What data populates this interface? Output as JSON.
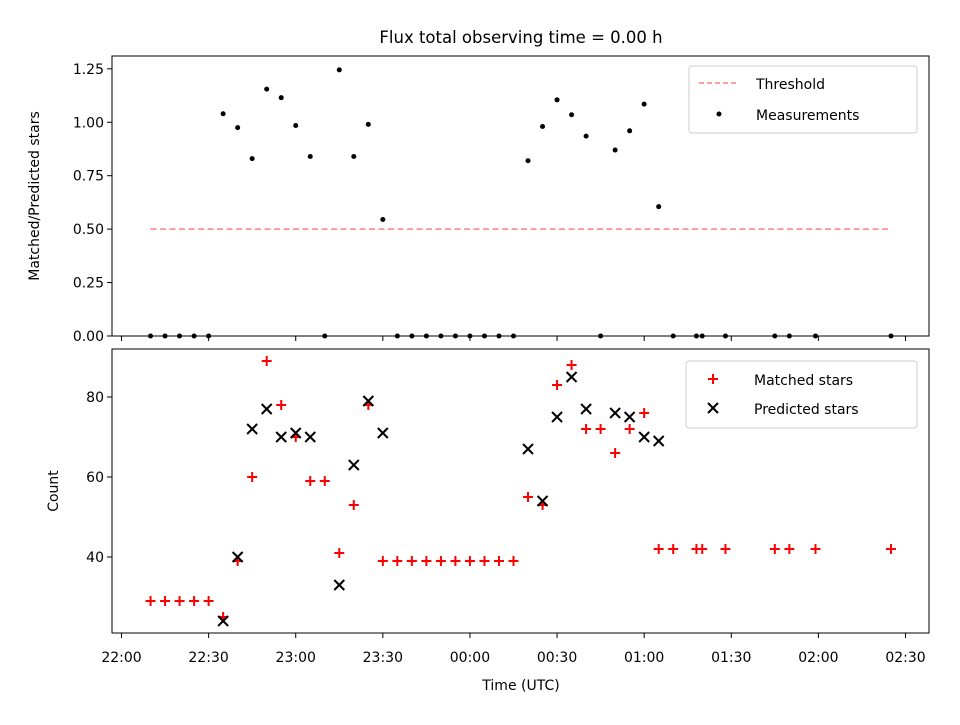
{
  "title": "Flux total observing time = 0.00 h",
  "chart_data": [
    {
      "type": "scatter",
      "ylabel": "Matched/Predicted stars",
      "ylim": [
        0,
        1.31
      ],
      "yticks": [
        0.0,
        0.25,
        0.5,
        0.75,
        1.0,
        1.25
      ],
      "ytick_labels": [
        "0.00",
        "0.25",
        "0.50",
        "0.75",
        "1.00",
        "1.25"
      ],
      "legend_position": "upper right",
      "threshold": {
        "name": "Threshold",
        "y": 0.5,
        "x_start": "22:10",
        "x_end": "02:25",
        "color": "#ff7f7f",
        "style": "dashed"
      },
      "series": [
        {
          "name": "Measurements",
          "color": "#000000",
          "marker": "dot",
          "points": [
            [
              "22:10",
              0.0
            ],
            [
              "22:15",
              0.0
            ],
            [
              "22:20",
              0.0
            ],
            [
              "22:25",
              0.0
            ],
            [
              "22:30",
              0.0
            ],
            [
              "22:35",
              1.04
            ],
            [
              "22:40",
              0.975
            ],
            [
              "22:45",
              0.83
            ],
            [
              "22:50",
              1.155
            ],
            [
              "22:55",
              1.115
            ],
            [
              "23:00",
              0.985
            ],
            [
              "23:05",
              0.84
            ],
            [
              "23:10",
              0.0
            ],
            [
              "23:15",
              1.245
            ],
            [
              "23:20",
              0.84
            ],
            [
              "23:25",
              0.99
            ],
            [
              "23:30",
              0.545
            ],
            [
              "23:35",
              0.0
            ],
            [
              "23:40",
              0.0
            ],
            [
              "23:45",
              0.0
            ],
            [
              "23:50",
              0.0
            ],
            [
              "23:55",
              0.0
            ],
            [
              "00:00",
              0.0
            ],
            [
              "00:05",
              0.0
            ],
            [
              "00:10",
              0.0
            ],
            [
              "00:15",
              0.0
            ],
            [
              "00:20",
              0.82
            ],
            [
              "00:25",
              0.98
            ],
            [
              "00:30",
              1.105
            ],
            [
              "00:35",
              1.035
            ],
            [
              "00:40",
              0.935
            ],
            [
              "00:45",
              0.0
            ],
            [
              "00:50",
              0.87
            ],
            [
              "00:55",
              0.96
            ],
            [
              "01:00",
              1.085
            ],
            [
              "01:05",
              0.605
            ],
            [
              "01:10",
              0.0
            ],
            [
              "01:18",
              0.0
            ],
            [
              "01:20",
              0.0
            ],
            [
              "01:28",
              0.0
            ],
            [
              "01:45",
              0.0
            ],
            [
              "01:50",
              0.0
            ],
            [
              "01:59",
              0.0
            ],
            [
              "02:25",
              0.0
            ]
          ]
        }
      ]
    },
    {
      "type": "scatter",
      "xlabel": "Time (UTC)",
      "ylabel": "Count",
      "ylim": [
        21,
        92
      ],
      "yticks": [
        40,
        60,
        80
      ],
      "ytick_labels": [
        "40",
        "60",
        "80"
      ],
      "xticks": [
        "22:00",
        "22:30",
        "23:00",
        "23:30",
        "00:00",
        "00:30",
        "01:00",
        "01:30",
        "02:00",
        "02:30"
      ],
      "legend_position": "upper right",
      "series": [
        {
          "name": "Matched stars",
          "color": "#ff0000",
          "marker": "plus",
          "points": [
            [
              "22:10",
              29
            ],
            [
              "22:15",
              29
            ],
            [
              "22:20",
              29
            ],
            [
              "22:25",
              29
            ],
            [
              "22:30",
              29
            ],
            [
              "22:35",
              25
            ],
            [
              "22:40",
              39
            ],
            [
              "22:45",
              60
            ],
            [
              "22:50",
              89
            ],
            [
              "22:55",
              78
            ],
            [
              "23:00",
              70
            ],
            [
              "23:05",
              59
            ],
            [
              "23:10",
              59
            ],
            [
              "23:15",
              41
            ],
            [
              "23:20",
              53
            ],
            [
              "23:25",
              78
            ],
            [
              "23:30",
              39
            ],
            [
              "23:35",
              39
            ],
            [
              "23:40",
              39
            ],
            [
              "23:45",
              39
            ],
            [
              "23:50",
              39
            ],
            [
              "23:55",
              39
            ],
            [
              "00:00",
              39
            ],
            [
              "00:05",
              39
            ],
            [
              "00:10",
              39
            ],
            [
              "00:15",
              39
            ],
            [
              "00:20",
              55
            ],
            [
              "00:25",
              53
            ],
            [
              "00:30",
              83
            ],
            [
              "00:35",
              88
            ],
            [
              "00:40",
              72
            ],
            [
              "00:45",
              72
            ],
            [
              "00:50",
              66
            ],
            [
              "00:55",
              72
            ],
            [
              "01:00",
              76
            ],
            [
              "01:05",
              42
            ],
            [
              "01:10",
              42
            ],
            [
              "01:18",
              42
            ],
            [
              "01:20",
              42
            ],
            [
              "01:28",
              42
            ],
            [
              "01:45",
              42
            ],
            [
              "01:50",
              42
            ],
            [
              "01:59",
              42
            ],
            [
              "02:25",
              42
            ]
          ]
        },
        {
          "name": "Predicted stars",
          "color": "#000000",
          "marker": "x",
          "points": [
            [
              "22:35",
              24
            ],
            [
              "22:40",
              40
            ],
            [
              "22:45",
              72
            ],
            [
              "22:50",
              77
            ],
            [
              "22:55",
              70
            ],
            [
              "23:00",
              71
            ],
            [
              "23:05",
              70
            ],
            [
              "23:15",
              33
            ],
            [
              "23:20",
              63
            ],
            [
              "23:25",
              79
            ],
            [
              "23:30",
              71
            ],
            [
              "00:20",
              67
            ],
            [
              "00:25",
              54
            ],
            [
              "00:30",
              75
            ],
            [
              "00:35",
              85
            ],
            [
              "00:40",
              77
            ],
            [
              "00:50",
              76
            ],
            [
              "00:55",
              75
            ],
            [
              "01:00",
              70
            ],
            [
              "01:05",
              69
            ]
          ]
        }
      ]
    }
  ]
}
